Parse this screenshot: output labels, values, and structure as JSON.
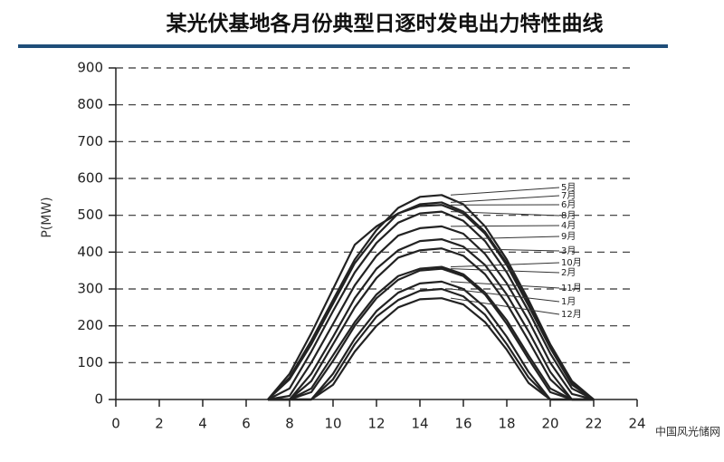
{
  "chart_data": {
    "type": "line",
    "title": "某光伏基地各月份典型日逐时发电出力特性曲线",
    "y_label": "P(MW)",
    "watermark": "中国风光储网",
    "x": [
      7,
      8,
      9,
      10,
      11,
      12,
      13,
      14,
      15,
      16,
      17,
      18,
      19,
      20,
      21,
      22
    ],
    "xlim": [
      0,
      24
    ],
    "xticks": [
      0,
      2,
      4,
      6,
      8,
      10,
      12,
      14,
      16,
      18,
      20,
      22,
      24
    ],
    "ylim": [
      0,
      900
    ],
    "yticks": [
      0,
      100,
      200,
      300,
      400,
      500,
      600,
      700,
      800,
      900
    ],
    "grid": true,
    "series": [
      {
        "name": "5月",
        "color": "#222222",
        "values": [
          0,
          60,
          160,
          270,
          380,
          460,
          520,
          550,
          555,
          530,
          470,
          380,
          270,
          150,
          50,
          0
        ]
      },
      {
        "name": "7月",
        "color": "#222222",
        "values": [
          0,
          55,
          150,
          260,
          370,
          445,
          505,
          530,
          535,
          510,
          455,
          370,
          260,
          145,
          45,
          0
        ]
      },
      {
        "name": "6月",
        "color": "#222222",
        "values": [
          0,
          70,
          180,
          300,
          420,
          470,
          505,
          525,
          528,
          505,
          450,
          365,
          255,
          140,
          40,
          0
        ]
      },
      {
        "name": "8月",
        "color": "#222222",
        "values": [
          0,
          30,
          130,
          240,
          345,
          425,
          480,
          505,
          510,
          485,
          430,
          345,
          240,
          125,
          30,
          0
        ]
      },
      {
        "name": "4月",
        "color": "#222222",
        "values": [
          0,
          10,
          100,
          205,
          310,
          390,
          445,
          465,
          470,
          450,
          395,
          315,
          215,
          100,
          15,
          0
        ]
      },
      {
        "name": "9月",
        "color": "#222222",
        "values": [
          0,
          0,
          70,
          170,
          275,
          355,
          405,
          430,
          435,
          415,
          365,
          285,
          185,
          75,
          0,
          0
        ]
      },
      {
        "name": "3月",
        "color": "#222222",
        "values": [
          0,
          0,
          50,
          150,
          250,
          330,
          385,
          405,
          410,
          390,
          340,
          260,
          160,
          55,
          0,
          0
        ]
      },
      {
        "name": "10月",
        "color": "#222222",
        "values": [
          0,
          0,
          30,
          120,
          210,
          285,
          335,
          355,
          360,
          340,
          290,
          215,
          120,
          30,
          0,
          0
        ]
      },
      {
        "name": "2月",
        "color": "#222222",
        "values": [
          0,
          0,
          20,
          105,
          200,
          275,
          325,
          350,
          355,
          335,
          285,
          205,
          110,
          20,
          0,
          0
        ]
      },
      {
        "name": "11月",
        "color": "#222222",
        "values": [
          0,
          0,
          0,
          70,
          165,
          240,
          290,
          315,
          320,
          300,
          250,
          170,
          75,
          0,
          0,
          0
        ]
      },
      {
        "name": "1月",
        "color": "#222222",
        "values": [
          0,
          0,
          0,
          55,
          150,
          225,
          270,
          295,
          300,
          280,
          230,
          150,
          60,
          0,
          0,
          0
        ]
      },
      {
        "name": "12月",
        "color": "#222222",
        "values": [
          0,
          0,
          0,
          40,
          130,
          200,
          250,
          272,
          275,
          258,
          210,
          135,
          45,
          0,
          0,
          0
        ]
      }
    ]
  }
}
